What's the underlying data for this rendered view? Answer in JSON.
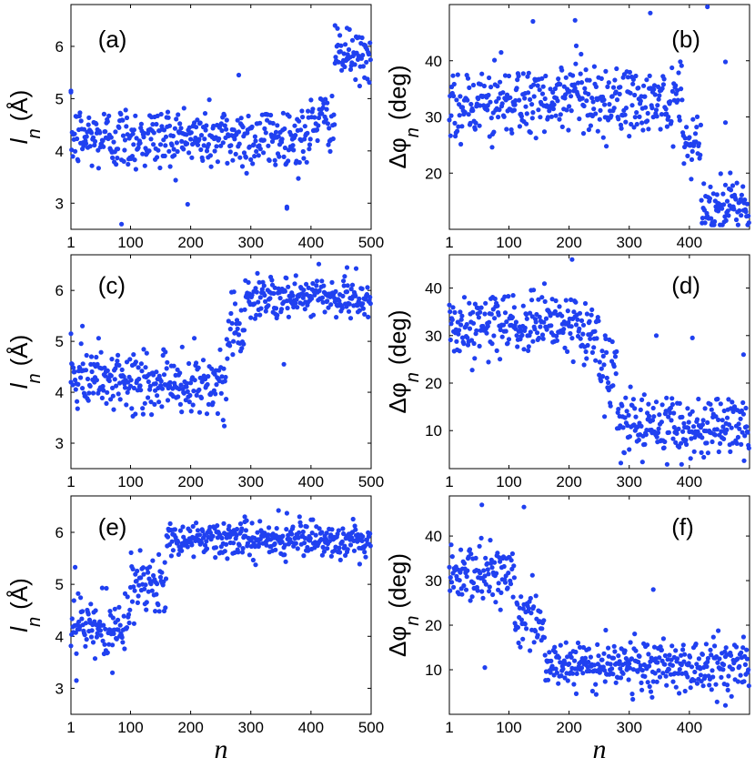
{
  "figure": {
    "x_axis_label": "n"
  },
  "chart_data": [
    {
      "id": "a",
      "type": "scatter",
      "panel_label": "(a)",
      "ylabel_symbol": "l",
      "ylabel_subscript": "n",
      "ylabel_unit": "(Å)",
      "xlim": [
        1,
        500
      ],
      "ylim": [
        2.5,
        6.8
      ],
      "xticks": [
        1,
        100,
        200,
        300,
        400,
        500
      ],
      "yticks": [
        3,
        4,
        5,
        6
      ],
      "marker_color": "#2040f0",
      "segments": [
        {
          "from": 1,
          "to": 400,
          "mean": 4.25,
          "spread": 0.42
        },
        {
          "from": 400,
          "to": 440,
          "mean": 4.6,
          "spread": 0.35
        },
        {
          "from": 440,
          "to": 500,
          "mean": 5.8,
          "spread": 0.3
        }
      ],
      "outliers": [
        [
          1,
          5.15
        ],
        [
          85,
          2.6
        ],
        [
          280,
          5.45
        ],
        [
          360,
          2.9
        ],
        [
          440,
          6.4
        ],
        [
          460,
          6.35
        ]
      ]
    },
    {
      "id": "b",
      "type": "scatter",
      "panel_label": "(b)",
      "ylabel_symbol": "Δφ",
      "ylabel_subscript": "n",
      "ylabel_unit": "(deg)",
      "xlim": [
        1,
        500
      ],
      "ylim": [
        10,
        50
      ],
      "xticks": [
        1,
        100,
        200,
        300,
        400
      ],
      "yticks": [
        20,
        30,
        40
      ],
      "marker_color": "#2040f0",
      "segments": [
        {
          "from": 1,
          "to": 390,
          "mean": 32.5,
          "spread": 4.5
        },
        {
          "from": 390,
          "to": 420,
          "mean": 26,
          "spread": 4
        },
        {
          "from": 420,
          "to": 500,
          "mean": 14,
          "spread": 3
        }
      ],
      "outliers": [
        [
          140,
          47
        ],
        [
          210,
          47.2
        ],
        [
          335,
          48.5
        ],
        [
          430,
          49.6
        ],
        [
          460,
          39.8
        ],
        [
          460,
          29
        ]
      ]
    },
    {
      "id": "c",
      "type": "scatter",
      "panel_label": "(c)",
      "ylabel_symbol": "l",
      "ylabel_subscript": "n",
      "ylabel_unit": "(Å)",
      "xlim": [
        1,
        500
      ],
      "ylim": [
        2.5,
        6.7
      ],
      "xticks": [
        1,
        100,
        200,
        300,
        400,
        500
      ],
      "yticks": [
        3,
        4,
        5,
        6
      ],
      "marker_color": "#2040f0",
      "segments": [
        {
          "from": 1,
          "to": 260,
          "mean": 4.2,
          "spread": 0.4
        },
        {
          "from": 260,
          "to": 290,
          "mean": 5.2,
          "spread": 0.4
        },
        {
          "from": 290,
          "to": 500,
          "mean": 5.85,
          "spread": 0.28
        }
      ],
      "outliers": [
        [
          1,
          5.15
        ],
        [
          20,
          5.3
        ],
        [
          355,
          4.55
        ],
        [
          460,
          6.45
        ]
      ]
    },
    {
      "id": "d",
      "type": "scatter",
      "panel_label": "(d)",
      "ylabel_symbol": "Δφ",
      "ylabel_subscript": "n",
      "ylabel_unit": "(deg)",
      "xlim": [
        1,
        500
      ],
      "ylim": [
        2,
        47
      ],
      "xticks": [
        1,
        100,
        200,
        300,
        400
      ],
      "yticks": [
        10,
        20,
        30,
        40
      ],
      "marker_color": "#2040f0",
      "segments": [
        {
          "from": 1,
          "to": 250,
          "mean": 32,
          "spread": 4.5
        },
        {
          "from": 250,
          "to": 280,
          "mean": 22,
          "spread": 5
        },
        {
          "from": 280,
          "to": 500,
          "mean": 11,
          "spread": 4.5
        }
      ],
      "outliers": [
        [
          205,
          46
        ],
        [
          345,
          30
        ],
        [
          405,
          29.5
        ],
        [
          490,
          26
        ]
      ]
    },
    {
      "id": "e",
      "type": "scatter",
      "panel_label": "(e)",
      "ylabel_symbol": "l",
      "ylabel_subscript": "n",
      "ylabel_unit": "(Å)",
      "xlim": [
        1,
        500
      ],
      "ylim": [
        2.5,
        6.7
      ],
      "xticks": [
        1,
        100,
        200,
        300,
        400,
        500
      ],
      "yticks": [
        3,
        4,
        5,
        6
      ],
      "marker_color": "#2040f0",
      "segments": [
        {
          "from": 1,
          "to": 100,
          "mean": 4.15,
          "spread": 0.4
        },
        {
          "from": 100,
          "to": 160,
          "mean": 5.0,
          "spread": 0.45
        },
        {
          "from": 160,
          "to": 500,
          "mean": 5.85,
          "spread": 0.22
        }
      ],
      "outliers": [
        [
          10,
          3.15
        ],
        [
          70,
          3.3
        ],
        [
          290,
          6.3
        ]
      ]
    },
    {
      "id": "f",
      "type": "scatter",
      "panel_label": "(f)",
      "ylabel_symbol": "Δφ",
      "ylabel_subscript": "n",
      "ylabel_unit": "(deg)",
      "xlim": [
        1,
        500
      ],
      "ylim": [
        0,
        49
      ],
      "xticks": [
        1,
        100,
        200,
        300,
        400
      ],
      "yticks": [
        10,
        20,
        30,
        40
      ],
      "marker_color": "#2040f0",
      "segments": [
        {
          "from": 1,
          "to": 110,
          "mean": 32,
          "spread": 4
        },
        {
          "from": 110,
          "to": 160,
          "mean": 20,
          "spread": 5
        },
        {
          "from": 160,
          "to": 500,
          "mean": 11,
          "spread": 4
        }
      ],
      "outliers": [
        [
          55,
          47
        ],
        [
          125,
          46.5
        ],
        [
          60,
          10.5
        ],
        [
          340,
          28
        ],
        [
          460,
          2
        ]
      ]
    }
  ]
}
